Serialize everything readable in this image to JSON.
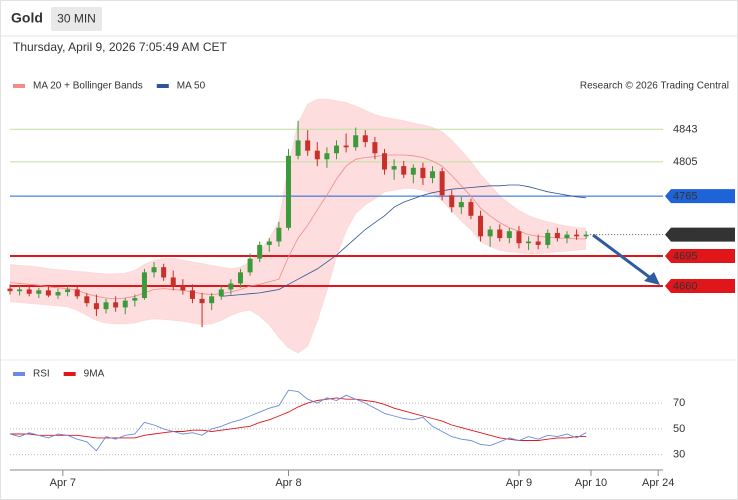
{
  "header": {
    "symbol": "Gold",
    "timeframe": "30 MIN",
    "timestamp": "Thursday, April 9, 2026 7:05:49 AM CET",
    "credit": "Research © 2026 Trading Central"
  },
  "chart_data": [
    {
      "type": "candlestick",
      "up_color": "#3c9a3c",
      "down_color": "#c8302a",
      "open": [
        4657,
        4654,
        4656,
        4651,
        4655,
        4649,
        4653,
        4656,
        4648,
        4640,
        4633,
        4641,
        4635,
        4643,
        4646,
        4676,
        4682,
        4670,
        4660,
        4655,
        4645,
        4640,
        4648,
        4656,
        4663,
        4676,
        4692,
        4708,
        4712,
        4728,
        4812,
        4830,
        4818,
        4808,
        4815,
        4824,
        4822,
        4836,
        4828,
        4815,
        4796,
        4800,
        4790,
        4798,
        4786,
        4794,
        4766,
        4752,
        4758,
        4742,
        4718,
        4726,
        4716,
        4724,
        4710,
        4712,
        4708,
        4722,
        4716,
        4720,
        4718
      ],
      "high": [
        4662,
        4660,
        4661,
        4658,
        4659,
        4657,
        4660,
        4659,
        4652,
        4650,
        4645,
        4648,
        4646,
        4650,
        4680,
        4688,
        4686,
        4678,
        4668,
        4662,
        4652,
        4652,
        4660,
        4668,
        4680,
        4698,
        4712,
        4716,
        4735,
        4820,
        4853,
        4842,
        4828,
        4822,
        4830,
        4838,
        4845,
        4842,
        4834,
        4820,
        4808,
        4806,
        4802,
        4804,
        4800,
        4798,
        4772,
        4764,
        4762,
        4748,
        4730,
        4732,
        4728,
        4730,
        4718,
        4720,
        4726,
        4728,
        4724,
        4726,
        4724
      ],
      "low": [
        4650,
        4649,
        4648,
        4646,
        4647,
        4645,
        4648,
        4645,
        4636,
        4625,
        4628,
        4630,
        4627,
        4636,
        4644,
        4670,
        4666,
        4655,
        4650,
        4640,
        4612,
        4632,
        4644,
        4650,
        4658,
        4672,
        4688,
        4700,
        4706,
        4725,
        4808,
        4812,
        4800,
        4798,
        4808,
        4816,
        4818,
        4822,
        4808,
        4790,
        4784,
        4786,
        4780,
        4778,
        4780,
        4760,
        4746,
        4744,
        4738,
        4712,
        4706,
        4712,
        4710,
        4704,
        4702,
        4703,
        4704,
        4712,
        4710,
        4714,
        4715
      ],
      "close": [
        4654,
        4656,
        4651,
        4655,
        4649,
        4653,
        4656,
        4648,
        4640,
        4633,
        4641,
        4635,
        4643,
        4646,
        4676,
        4682,
        4670,
        4660,
        4655,
        4645,
        4640,
        4648,
        4656,
        4663,
        4676,
        4692,
        4708,
        4712,
        4728,
        4812,
        4830,
        4818,
        4808,
        4815,
        4824,
        4822,
        4836,
        4828,
        4815,
        4796,
        4800,
        4790,
        4798,
        4786,
        4794,
        4766,
        4752,
        4758,
        4742,
        4718,
        4726,
        4716,
        4724,
        4710,
        4712,
        4708,
        4722,
        4716,
        4720,
        4718,
        4720
      ],
      "series": [
        {
          "name": "MA 20 + Bollinger Bands",
          "color": "#f28b8b",
          "band_color": "#fdd9d9",
          "values": [
            4664,
            4663,
            4662,
            4661,
            4659,
            4658,
            4657,
            4655,
            4651,
            4648,
            4646,
            4645,
            4646,
            4648,
            4652,
            4656,
            4657,
            4656,
            4655,
            4653,
            4651,
            4650,
            4651,
            4653,
            4656,
            4660,
            4662,
            4665,
            4668,
            4694,
            4716,
            4731,
            4749,
            4766,
            4785,
            4800,
            4808,
            4810,
            4811,
            4813,
            4813,
            4813,
            4812,
            4810,
            4806,
            4800,
            4789,
            4777,
            4765,
            4751,
            4742,
            4734,
            4728,
            4724,
            4720,
            4718,
            4717,
            4716,
            4716,
            4715,
            4715
          ],
          "upper": [
            4685,
            4684,
            4683,
            4682,
            4680,
            4679,
            4678,
            4677,
            4676,
            4675,
            4674,
            4674,
            4675,
            4678,
            4685,
            4690,
            4692,
            4692,
            4690,
            4688,
            4686,
            4684,
            4682,
            4680,
            4682,
            4688,
            4700,
            4715,
            4735,
            4800,
            4850,
            4872,
            4878,
            4878,
            4876,
            4874,
            4870,
            4865,
            4860,
            4857,
            4855,
            4853,
            4850,
            4848,
            4845,
            4840,
            4830,
            4818,
            4805,
            4790,
            4778,
            4765,
            4756,
            4748,
            4742,
            4738,
            4735,
            4732,
            4730,
            4728,
            4727
          ],
          "lower": [
            4642,
            4641,
            4640,
            4639,
            4638,
            4637,
            4636,
            4632,
            4626,
            4620,
            4617,
            4616,
            4616,
            4617,
            4620,
            4622,
            4621,
            4620,
            4619,
            4617,
            4615,
            4616,
            4620,
            4626,
            4630,
            4632,
            4625,
            4615,
            4600,
            4588,
            4582,
            4590,
            4620,
            4655,
            4695,
            4725,
            4745,
            4755,
            4762,
            4770,
            4772,
            4774,
            4774,
            4772,
            4768,
            4760,
            4748,
            4736,
            4726,
            4712,
            4706,
            4702,
            4700,
            4699,
            4698,
            4698,
            4699,
            4700,
            4701,
            4702,
            4703
          ]
        },
        {
          "name": "MA 50",
          "color": "#2f5597",
          "values": [
            null,
            null,
            null,
            null,
            null,
            null,
            null,
            null,
            null,
            null,
            null,
            null,
            null,
            null,
            null,
            null,
            null,
            null,
            null,
            null,
            null,
            null,
            4648,
            4649,
            4650,
            4651,
            4652,
            4654,
            4656,
            4662,
            4668,
            4674,
            4680,
            4688,
            4696,
            4706,
            4716,
            4726,
            4734,
            4742,
            4752,
            4758,
            4762,
            4766,
            4769,
            4771,
            4773,
            4774,
            4775,
            4776,
            4777,
            4777,
            4778,
            4778,
            4776,
            4773,
            4770,
            4768,
            4766,
            4764,
            4763
          ]
        }
      ],
      "levels": [
        {
          "value": 4843,
          "color": "#8cc63f"
        },
        {
          "value": 4805,
          "color": "#8cc63f"
        },
        {
          "value": 4765,
          "color": "#1f63d8"
        },
        {
          "value": 4720,
          "color": "#333333",
          "dashed": true
        },
        {
          "value": 4695,
          "color": "#e0161b"
        },
        {
          "value": 4660,
          "color": "#e0161b"
        }
      ],
      "ylim": [
        4576,
        4883
      ],
      "xlim": [
        0,
        68
      ],
      "xticks": [
        {
          "value": 5.5,
          "label": "Apr 7"
        },
        {
          "value": 29,
          "label": "Apr 8"
        },
        {
          "value": 53,
          "label": "Apr 9"
        },
        {
          "value": 60.5,
          "label": "Apr 10"
        },
        {
          "value": 67.5,
          "label": "Apr 24"
        }
      ]
    },
    {
      "type": "line",
      "series": [
        {
          "name": "RSI",
          "color": "#6a8be0",
          "values": [
            46,
            44,
            47,
            45,
            43,
            46,
            45,
            42,
            40,
            33,
            44,
            42,
            45,
            46,
            55,
            53,
            50,
            48,
            46,
            47,
            45,
            50,
            52,
            55,
            57,
            60,
            63,
            66,
            68,
            80,
            79,
            73,
            70,
            74,
            72,
            76,
            73,
            70,
            66,
            62,
            60,
            58,
            57,
            59,
            52,
            48,
            44,
            42,
            41,
            38,
            37,
            40,
            43,
            41,
            44,
            42,
            45,
            44,
            46,
            43,
            47
          ]
        },
        {
          "name": "9MA",
          "color": "#e0161b",
          "values": [
            46,
            46,
            46,
            45,
            45,
            45,
            45,
            45,
            44,
            43,
            43,
            43,
            43,
            43,
            45,
            46,
            47,
            48,
            48,
            49,
            49,
            48,
            49,
            50,
            51,
            52,
            55,
            57,
            60,
            63,
            67,
            70,
            72,
            73,
            74,
            73,
            73,
            72,
            71,
            69,
            66,
            64,
            62,
            60,
            58,
            56,
            53,
            51,
            49,
            47,
            45,
            43,
            42,
            41,
            41,
            41,
            42,
            43,
            43,
            44,
            44
          ]
        }
      ],
      "ylim": [
        22,
        84
      ],
      "yticks": [
        30,
        50,
        70
      ],
      "grid": true
    }
  ]
}
